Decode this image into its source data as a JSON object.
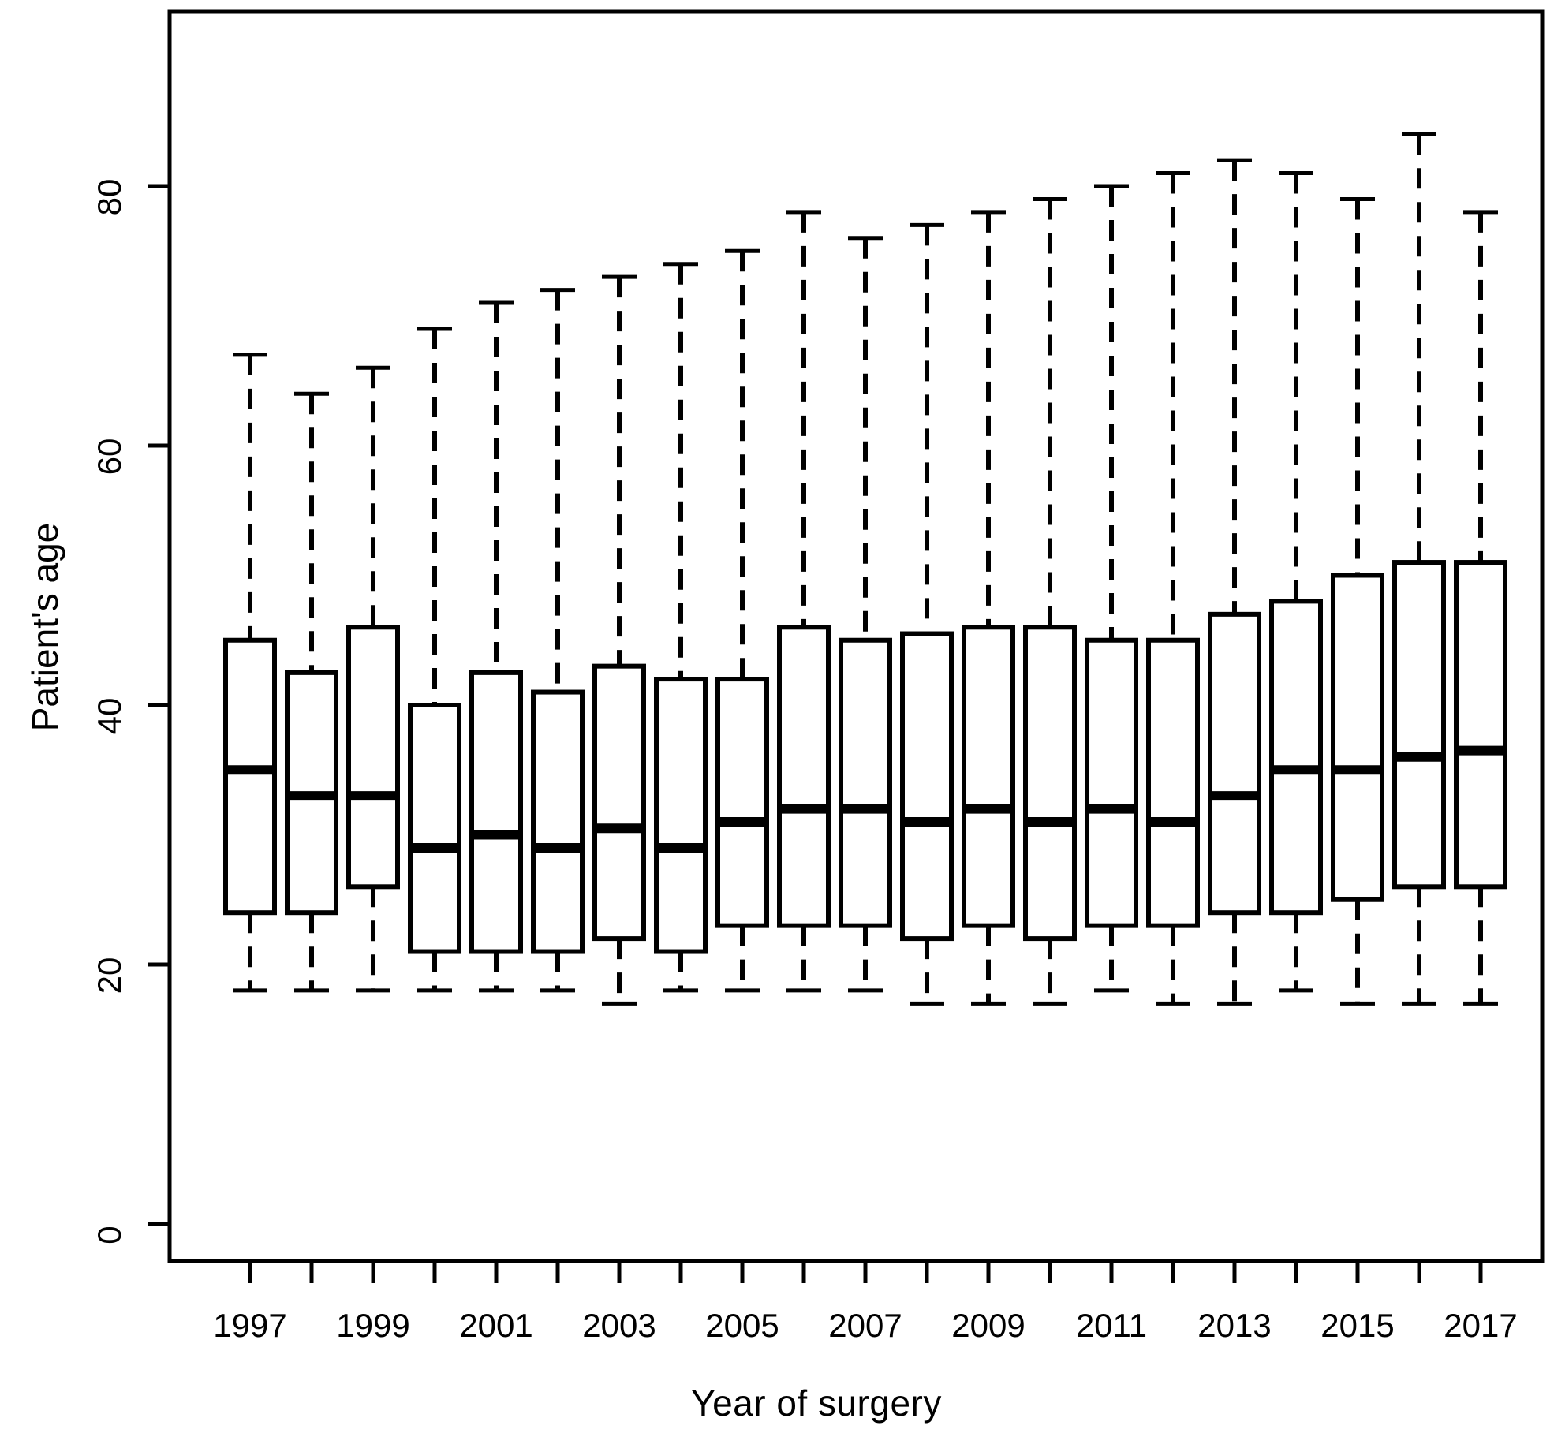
{
  "figure": {
    "background_color": "#ffffff",
    "ink_color": "#000000"
  },
  "chart_data": {
    "type": "boxplot",
    "title": "",
    "xlabel": "Year of surgery",
    "ylabel": "Patient's age",
    "ylim": [
      -3.5,
      93.5
    ],
    "yticks": [
      0,
      20,
      40,
      60,
      80
    ],
    "xtick_years": [
      1997,
      1998,
      1999,
      2000,
      2001,
      2002,
      2003,
      2004,
      2005,
      2006,
      2007,
      2008,
      2009,
      2010,
      2011,
      2012,
      2013,
      2014,
      2015,
      2016,
      2017
    ],
    "xtick_labeled_years": [
      1997,
      1999,
      2001,
      2003,
      2005,
      2007,
      2009,
      2011,
      2013,
      2015,
      2017
    ],
    "grid": false,
    "legend": "none",
    "whisker_style": "dashed",
    "series": [
      {
        "year": 1997,
        "whisker_low": 18,
        "q1": 24,
        "median": 35,
        "q3": 45,
        "whisker_high": 67
      },
      {
        "year": 1998,
        "whisker_low": 18,
        "q1": 24,
        "median": 33,
        "q3": 42.5,
        "whisker_high": 64
      },
      {
        "year": 1999,
        "whisker_low": 18,
        "q1": 26,
        "median": 33,
        "q3": 46,
        "whisker_high": 66
      },
      {
        "year": 2000,
        "whisker_low": 18,
        "q1": 21,
        "median": 29,
        "q3": 40,
        "whisker_high": 69
      },
      {
        "year": 2001,
        "whisker_low": 18,
        "q1": 21,
        "median": 30,
        "q3": 42.5,
        "whisker_high": 71
      },
      {
        "year": 2002,
        "whisker_low": 18,
        "q1": 21,
        "median": 29,
        "q3": 41,
        "whisker_high": 72
      },
      {
        "year": 2003,
        "whisker_low": 17,
        "q1": 22,
        "median": 30.5,
        "q3": 43,
        "whisker_high": 73
      },
      {
        "year": 2004,
        "whisker_low": 18,
        "q1": 21,
        "median": 29,
        "q3": 42,
        "whisker_high": 74
      },
      {
        "year": 2005,
        "whisker_low": 18,
        "q1": 23,
        "median": 31,
        "q3": 42,
        "whisker_high": 75
      },
      {
        "year": 2006,
        "whisker_low": 18,
        "q1": 23,
        "median": 32,
        "q3": 46,
        "whisker_high": 78
      },
      {
        "year": 2007,
        "whisker_low": 18,
        "q1": 23,
        "median": 32,
        "q3": 45,
        "whisker_high": 76
      },
      {
        "year": 2008,
        "whisker_low": 17,
        "q1": 22,
        "median": 31,
        "q3": 45.5,
        "whisker_high": 77
      },
      {
        "year": 2009,
        "whisker_low": 17,
        "q1": 23,
        "median": 32,
        "q3": 46,
        "whisker_high": 78
      },
      {
        "year": 2010,
        "whisker_low": 17,
        "q1": 22,
        "median": 31,
        "q3": 46,
        "whisker_high": 79
      },
      {
        "year": 2011,
        "whisker_low": 18,
        "q1": 23,
        "median": 32,
        "q3": 45,
        "whisker_high": 80
      },
      {
        "year": 2012,
        "whisker_low": 17,
        "q1": 23,
        "median": 31,
        "q3": 45,
        "whisker_high": 81
      },
      {
        "year": 2013,
        "whisker_low": 17,
        "q1": 24,
        "median": 33,
        "q3": 47,
        "whisker_high": 82
      },
      {
        "year": 2014,
        "whisker_low": 18,
        "q1": 24,
        "median": 35,
        "q3": 48,
        "whisker_high": 81
      },
      {
        "year": 2015,
        "whisker_low": 17,
        "q1": 25,
        "median": 35,
        "q3": 50,
        "whisker_high": 79
      },
      {
        "year": 2016,
        "whisker_low": 17,
        "q1": 26,
        "median": 36,
        "q3": 51,
        "whisker_high": 84
      },
      {
        "year": 2017,
        "whisker_low": 17,
        "q1": 26,
        "median": 36.5,
        "q3": 51,
        "whisker_high": 78
      }
    ]
  }
}
